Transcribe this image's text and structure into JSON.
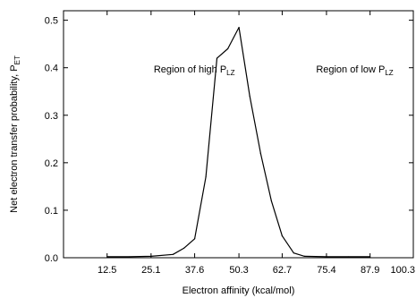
{
  "chart_data": {
    "type": "line",
    "title": "",
    "xlabel": "Electron affinity (kcal/mol)",
    "ylabel": {
      "main": "Net electron transfer probability, P",
      "sub": "ET"
    },
    "xlim": [
      0,
      100.3
    ],
    "ylim": [
      0,
      0.52
    ],
    "xticks": [
      12.5,
      25.1,
      37.6,
      50.3,
      62.7,
      75.4,
      87.9,
      100.3
    ],
    "xtick_labels": [
      "12.5",
      "25.1",
      "37.6",
      "50.3",
      "62.7",
      "75.4",
      "87.9",
      "100.3"
    ],
    "yticks": [
      0.0,
      0.1,
      0.2,
      0.3,
      0.4,
      0.5
    ],
    "ytick_labels": [
      "0.0",
      "0.1",
      "0.2",
      "0.3",
      "0.4",
      "0.5"
    ],
    "grid": false,
    "series": [
      {
        "x": [
          12.5,
          18.8,
          25.1,
          31.4,
          34.5,
          37.6,
          40.8,
          44.0,
          47.1,
          50.3,
          53.4,
          56.5,
          59.6,
          62.7,
          66.0,
          69.1,
          75.4,
          81.7,
          87.9
        ],
        "y": [
          0.002,
          0.002,
          0.003,
          0.007,
          0.02,
          0.04,
          0.17,
          0.42,
          0.44,
          0.485,
          0.34,
          0.22,
          0.12,
          0.046,
          0.01,
          0.003,
          0.002,
          0.002,
          0.002
        ]
      }
    ],
    "annotations": [
      {
        "id": "high",
        "text": "Region of high P",
        "sub": "LZ",
        "x": 37.5,
        "y": 0.39
      },
      {
        "id": "low",
        "text": "Region of low P",
        "sub": "LZ",
        "x": 83.5,
        "y": 0.39
      }
    ],
    "colors": {
      "line": "#000000",
      "axis": "#000000",
      "text": "#000000"
    }
  }
}
